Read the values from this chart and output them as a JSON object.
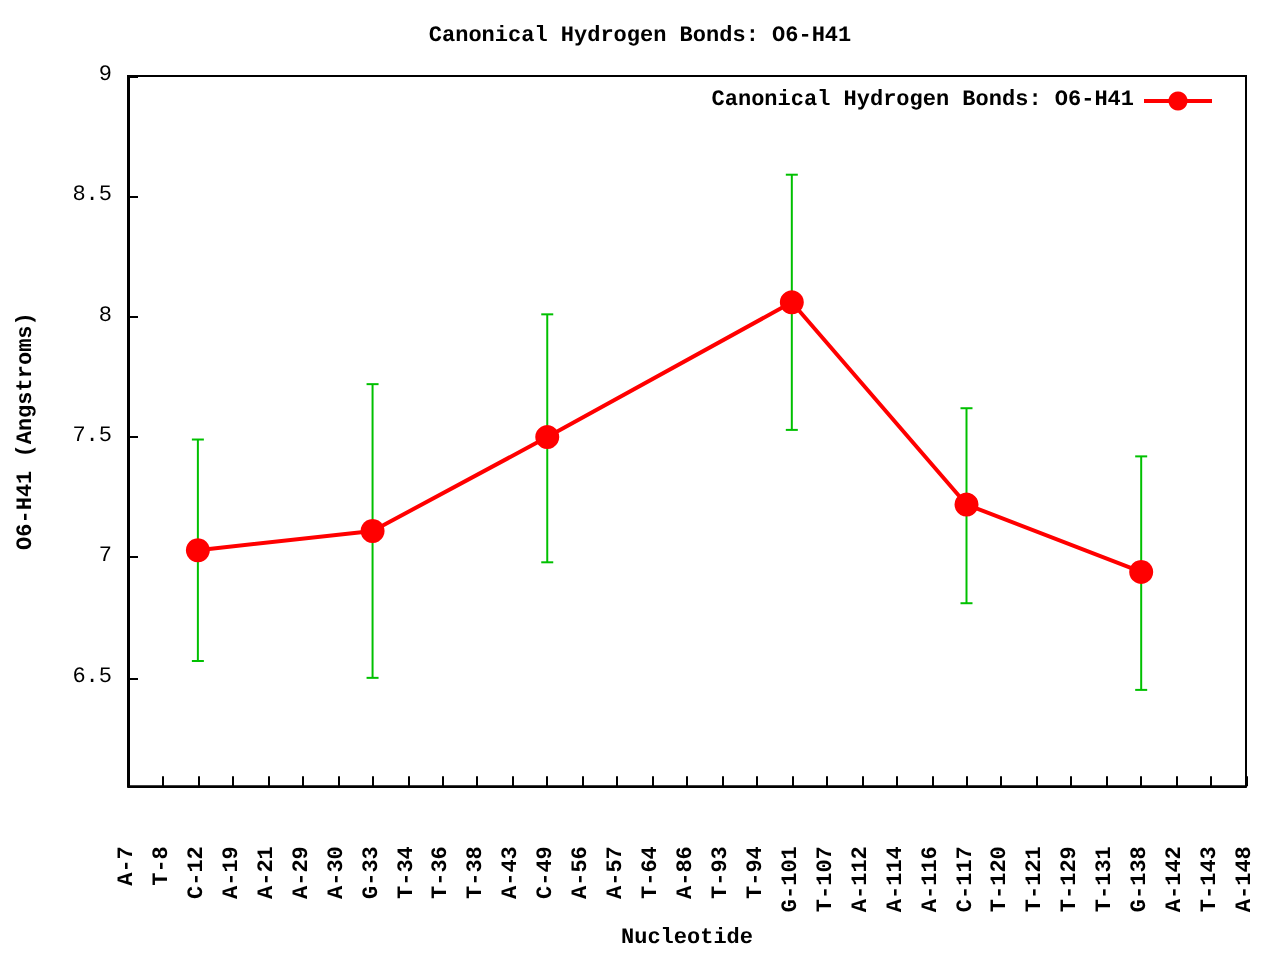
{
  "chart_data": {
    "type": "line",
    "title": "Canonical Hydrogen Bonds: O6-H41",
    "xlabel": "Nucleotide",
    "ylabel": "O6-H41 (Angstroms)",
    "categories": [
      "A-7",
      "T-8",
      "C-12",
      "A-19",
      "A-21",
      "A-29",
      "A-30",
      "G-33",
      "T-34",
      "T-36",
      "T-38",
      "A-43",
      "C-49",
      "A-56",
      "A-57",
      "T-64",
      "A-86",
      "T-93",
      "T-94",
      "G-101",
      "T-107",
      "A-112",
      "A-114",
      "A-116",
      "C-117",
      "T-120",
      "T-121",
      "T-129",
      "T-131",
      "G-138",
      "A-142",
      "T-143",
      "A-148"
    ],
    "series": [
      {
        "name": "Canonical Hydrogen Bonds: O6-H41",
        "color": "#ff0000",
        "values": [
          null,
          null,
          7.03,
          null,
          null,
          null,
          null,
          7.11,
          null,
          null,
          null,
          null,
          7.5,
          null,
          null,
          null,
          null,
          null,
          null,
          8.06,
          null,
          null,
          null,
          null,
          7.22,
          null,
          null,
          null,
          null,
          6.94,
          null,
          null,
          null
        ],
        "errors": [
          null,
          null,
          [
            6.57,
            7.49
          ],
          null,
          null,
          null,
          null,
          [
            6.5,
            7.72
          ],
          null,
          null,
          null,
          null,
          [
            6.98,
            8.01
          ],
          null,
          null,
          null,
          null,
          null,
          null,
          [
            7.53,
            8.59
          ],
          null,
          null,
          null,
          null,
          [
            6.81,
            7.62
          ],
          null,
          null,
          null,
          null,
          [
            6.45,
            7.42
          ],
          null,
          null,
          null
        ]
      }
    ],
    "ylim": [
      6.05,
      9
    ],
    "yticks": [
      6.5,
      7,
      7.5,
      8,
      8.5,
      9
    ],
    "grid": false,
    "legend": "top right",
    "marker": "circle",
    "line_style": "solid"
  }
}
